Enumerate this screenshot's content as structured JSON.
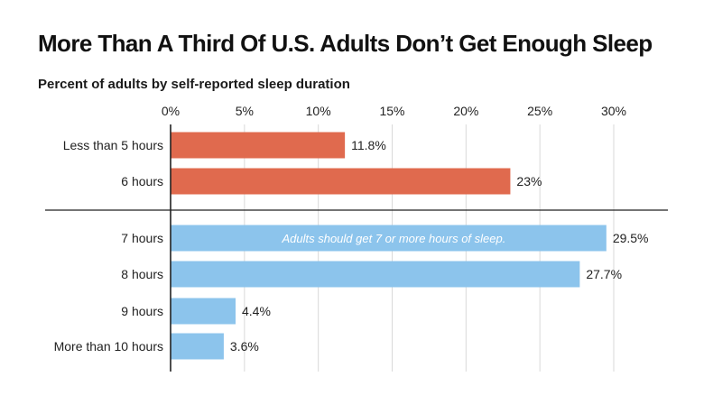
{
  "title": "More Than A Third Of U.S. Adults Don’t Get Enough Sleep",
  "subtitle": "Percent of adults by self-reported sleep duration",
  "colors": {
    "insufficient": "#e06a4e",
    "sufficient": "#8cc4ec",
    "grid": "#d9d9d9",
    "axis": "#222222"
  },
  "chart_data": {
    "type": "bar",
    "orientation": "horizontal",
    "title": "More Than A Third Of U.S. Adults Don’t Get Enough Sleep",
    "subtitle": "Percent of adults by self-reported sleep duration",
    "xlim": [
      0,
      30
    ],
    "xticks": [
      0,
      5,
      10,
      15,
      20,
      25,
      30
    ],
    "xtick_labels": [
      "0%",
      "5%",
      "10%",
      "15%",
      "20%",
      "25%",
      "30%"
    ],
    "x_axis_position": "top",
    "grid": true,
    "categories": [
      "Less than 5 hours",
      "6 hours",
      "7 hours",
      "8 hours",
      "9 hours",
      "More than 10 hours"
    ],
    "values": [
      11.8,
      23,
      29.5,
      27.7,
      4.4,
      3.6
    ],
    "value_labels": [
      "11.8%",
      "23%",
      "29.5%",
      "27.7%",
      "4.4%",
      "3.6%"
    ],
    "bar_colors": [
      "insufficient",
      "insufficient",
      "sufficient",
      "sufficient",
      "sufficient",
      "sufficient"
    ],
    "separator_after_index": 1,
    "annotation": {
      "text": "Adults should get 7 or more hours of sleep.",
      "category": "7 hours"
    }
  }
}
